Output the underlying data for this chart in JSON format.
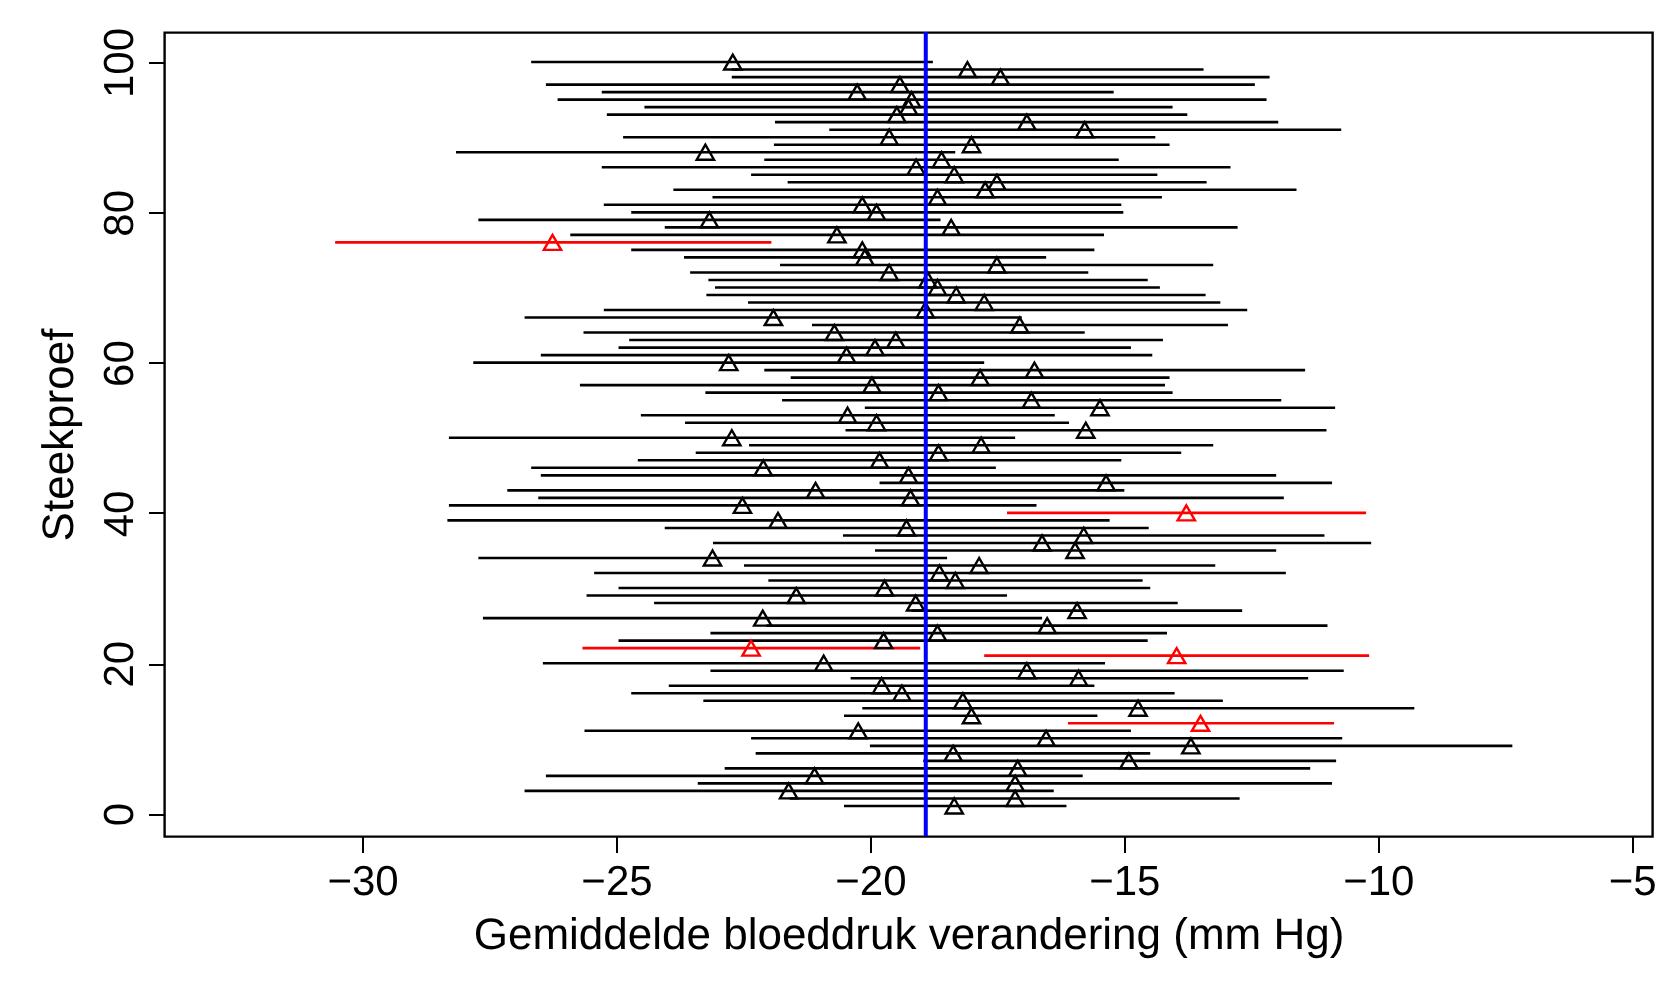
{
  "chart_data": {
    "type": "scatter",
    "xlabel": "Gemiddelde bloeddruk verandering (mm Hg)",
    "ylabel": "Steekproef",
    "xlim": [
      -33.9,
      -4.6
    ],
    "xticks": [
      -30,
      -25,
      -20,
      -15,
      -10,
      -5
    ],
    "ylim": [
      -3,
      104
    ],
    "yticks": [
      0,
      20,
      40,
      60,
      80,
      100
    ],
    "grid": false,
    "marker": "triangle",
    "x": [
      -18.34,
      -17.14,
      -21.6,
      -17.14,
      -21.09,
      -17.09,
      -14.9,
      -18.36,
      -13.68,
      -16.53,
      -20.23,
      -13.49,
      -18.0,
      -14.72,
      -18.17,
      -19.37,
      -19.77,
      -15.89,
      -16.91,
      -20.91,
      -13.96,
      -22.34,
      -19.73,
      -18.67,
      -16.51,
      -22.11,
      -15.92,
      -19.1,
      -21.45,
      -19.71,
      -18.32,
      -18.63,
      -17.85,
      -23.1,
      -15.96,
      -16.61,
      -15.79,
      -19.28,
      -21.81,
      -13.77,
      -22.51,
      -19.2,
      -21.07,
      -15.35,
      -19.24,
      -22.1,
      -19.81,
      -18.65,
      -17.81,
      -22.72,
      -15.75,
      -19.87,
      -20.44,
      -15.47,
      -16.82,
      -18.65,
      -19.96,
      -17.83,
      -16.76,
      -22.78,
      -20.46,
      -19.9,
      -19.49,
      -20.7,
      -17.05,
      -21.9,
      -18.91,
      -17.75,
      -18.3,
      -18.67,
      -18.86,
      -19.62,
      -17.5,
      -20.1,
      -20.15,
      -26.25,
      -20.65,
      -18.4,
      -23.16,
      -19.87,
      -20.15,
      -18.67,
      -17.73,
      -17.5,
      -18.34,
      -19.09,
      -18.59,
      -23.24,
      -18.0,
      -19.62,
      -15.77,
      -16.91,
      -19.47,
      -19.24,
      -19.18,
      -20.25,
      -19.41,
      -17.43,
      -18.08,
      -22.7
    ],
    "values": [
      1,
      2,
      3,
      4,
      5,
      6,
      7,
      8,
      9,
      10,
      11,
      12,
      13,
      14,
      15,
      16,
      17,
      18,
      19,
      20,
      21,
      22,
      23,
      24,
      25,
      26,
      27,
      28,
      29,
      30,
      31,
      32,
      33,
      34,
      35,
      36,
      37,
      38,
      39,
      40,
      41,
      42,
      43,
      44,
      45,
      46,
      47,
      48,
      49,
      50,
      51,
      52,
      53,
      54,
      55,
      56,
      57,
      58,
      59,
      60,
      61,
      62,
      63,
      64,
      65,
      66,
      67,
      68,
      69,
      70,
      71,
      72,
      73,
      74,
      75,
      76,
      77,
      78,
      79,
      80,
      81,
      82,
      83,
      84,
      85,
      86,
      87,
      88,
      89,
      90,
      91,
      92,
      93,
      94,
      95,
      96,
      97,
      98,
      99,
      100
    ],
    "xerrors": [
      [
        -20.51,
        -16.13
      ],
      [
        -21.58,
        -12.72
      ],
      [
        -26.8,
        -16.38
      ],
      [
        -23.39,
        -10.9
      ],
      [
        -26.38,
        -15.81
      ],
      [
        -22.86,
        -11.33
      ],
      [
        -18.95,
        -10.82
      ],
      [
        -22.25,
        -14.48
      ],
      [
        -20.0,
        -7.35
      ],
      [
        -22.34,
        -10.7
      ],
      [
        -25.62,
        -14.86
      ],
      [
        -16.1,
        -10.86
      ],
      [
        -20.51,
        -15.52
      ],
      [
        -20.15,
        -9.28
      ],
      [
        -23.28,
        -13.05
      ],
      [
        -24.7,
        -14.0
      ],
      [
        -23.96,
        -15.58
      ],
      [
        -20.38,
        -11.37
      ],
      [
        -23.14,
        -10.67
      ],
      [
        -26.44,
        -15.37
      ],
      [
        -17.75,
        -10.17
      ],
      [
        -25.66,
        -19.01
      ],
      [
        -24.95,
        -14.53
      ],
      [
        -23.14,
        -14.15
      ],
      [
        -22.04,
        -10.99
      ],
      [
        -27.62,
        -16.61
      ],
      [
        -19.18,
        -12.67
      ],
      [
        -24.25,
        -13.94
      ],
      [
        -25.58,
        -17.3
      ],
      [
        -24.95,
        -14.48
      ],
      [
        -22.0,
        -14.63
      ],
      [
        -25.43,
        -11.81
      ],
      [
        -22.48,
        -13.2
      ],
      [
        -27.71,
        -18.48
      ],
      [
        -19.9,
        -12.0
      ],
      [
        -23.09,
        -10.13
      ],
      [
        -20.53,
        -11.05
      ],
      [
        -24.04,
        -14.51
      ],
      [
        -28.32,
        -15.28
      ],
      [
        -17.3,
        -10.23
      ],
      [
        -28.29,
        -16.72
      ],
      [
        -26.53,
        -11.85
      ],
      [
        -27.14,
        -14.99
      ],
      [
        -19.81,
        -10.9
      ],
      [
        -26.48,
        -12.0
      ],
      [
        -26.67,
        -17.52
      ],
      [
        -24.57,
        -15.05
      ],
      [
        -23.43,
        -13.87
      ],
      [
        -22.38,
        -13.24
      ],
      [
        -28.29,
        -17.14
      ],
      [
        -20.48,
        -11.01
      ],
      [
        -23.64,
        -16.08
      ],
      [
        -24.51,
        -16.36
      ],
      [
        -20.1,
        -10.84
      ],
      [
        -21.73,
        -11.9
      ],
      [
        -23.24,
        -14.04
      ],
      [
        -25.71,
        -14.19
      ],
      [
        -21.56,
        -14.1
      ],
      [
        -22.08,
        -11.43
      ],
      [
        -27.81,
        -17.75
      ],
      [
        -26.48,
        -14.44
      ],
      [
        -24.95,
        -14.86
      ],
      [
        -24.74,
        -14.23
      ],
      [
        -25.64,
        -15.77
      ],
      [
        -21.14,
        -12.95
      ],
      [
        -26.8,
        -17.01
      ],
      [
        -25.24,
        -12.57
      ],
      [
        -22.4,
        -13.1
      ],
      [
        -23.22,
        -13.39
      ],
      [
        -23.05,
        -14.29
      ],
      [
        -23.18,
        -14.53
      ],
      [
        -23.54,
        -15.7
      ],
      [
        -21.77,
        -13.24
      ],
      [
        -23.66,
        -16.53
      ],
      [
        -24.7,
        -15.58
      ],
      [
        -30.53,
        -21.94
      ],
      [
        -25.9,
        -15.39
      ],
      [
        -24.04,
        -12.76
      ],
      [
        -27.71,
        -18.61
      ],
      [
        -24.7,
        -15.01
      ],
      [
        -25.24,
        -15.05
      ],
      [
        -23.1,
        -14.25
      ],
      [
        -23.87,
        -11.6
      ],
      [
        -21.62,
        -13.37
      ],
      [
        -22.34,
        -14.34
      ],
      [
        -25.28,
        -12.9
      ],
      [
        -22.08,
        -15.1
      ],
      [
        -28.15,
        -18.32
      ],
      [
        -21.89,
        -14.1
      ],
      [
        -24.86,
        -14.38
      ],
      [
        -20.8,
        -10.72
      ],
      [
        -21.87,
        -11.96
      ],
      [
        -25.18,
        -13.75
      ],
      [
        -24.44,
        -14.04
      ],
      [
        -26.15,
        -12.19
      ],
      [
        -25.28,
        -15.2
      ],
      [
        -26.38,
        -12.42
      ],
      [
        -22.72,
        -12.13
      ],
      [
        -22.72,
        -13.43
      ],
      [
        -26.67,
        -18.76
      ]
    ],
    "colors": [
      "#000000",
      "#000000",
      "#000000",
      "#000000",
      "#000000",
      "#000000",
      "#000000",
      "#000000",
      "#000000",
      "#000000",
      "#000000",
      "#ff0000",
      "#000000",
      "#000000",
      "#000000",
      "#000000",
      "#000000",
      "#000000",
      "#000000",
      "#000000",
      "#ff0000",
      "#ff0000",
      "#000000",
      "#000000",
      "#000000",
      "#000000",
      "#000000",
      "#000000",
      "#000000",
      "#000000",
      "#000000",
      "#000000",
      "#000000",
      "#000000",
      "#000000",
      "#000000",
      "#000000",
      "#000000",
      "#000000",
      "#ff0000",
      "#000000",
      "#000000",
      "#000000",
      "#000000",
      "#000000",
      "#000000",
      "#000000",
      "#000000",
      "#000000",
      "#000000",
      "#000000",
      "#000000",
      "#000000",
      "#000000",
      "#000000",
      "#000000",
      "#000000",
      "#000000",
      "#000000",
      "#000000",
      "#000000",
      "#000000",
      "#000000",
      "#000000",
      "#000000",
      "#000000",
      "#000000",
      "#000000",
      "#000000",
      "#000000",
      "#000000",
      "#000000",
      "#000000",
      "#000000",
      "#000000",
      "#ff0000",
      "#000000",
      "#000000",
      "#000000",
      "#000000",
      "#000000",
      "#000000",
      "#000000",
      "#000000",
      "#000000",
      "#000000",
      "#000000",
      "#000000",
      "#000000",
      "#000000",
      "#000000",
      "#000000",
      "#000000",
      "#000000",
      "#000000",
      "#000000",
      "#000000",
      "#000000",
      "#000000",
      "#000000"
    ],
    "ref_lines": [
      {
        "axis": "x",
        "value": -18.9,
        "color": "#0000ff"
      }
    ]
  }
}
